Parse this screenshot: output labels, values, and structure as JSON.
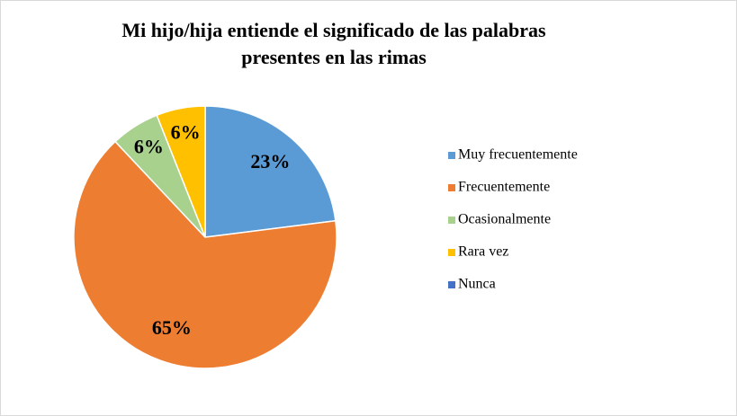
{
  "chart_data": {
    "type": "pie",
    "title": "Mi hijo/hija entiende el significado de las palabras presentes en las rimas",
    "categories": [
      "Muy frecuentemente",
      "Frecuentemente",
      "Ocasionalmente",
      "Rara vez",
      "Nunca"
    ],
    "values": [
      23,
      65,
      6,
      6,
      0
    ],
    "value_labels": [
      "23%",
      "65%",
      "6%",
      "6%",
      null
    ],
    "colors": [
      "#5b9bd5",
      "#ed7d31",
      "#a9d18e",
      "#ffc000",
      "#4472c4"
    ],
    "legend": "right"
  }
}
